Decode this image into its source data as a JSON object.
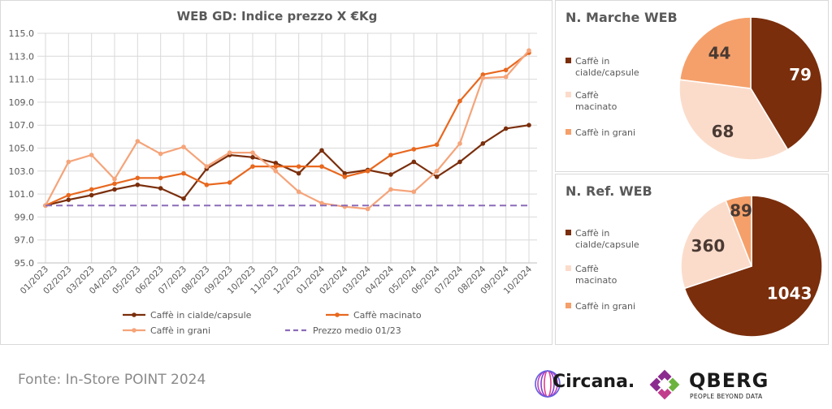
{
  "chart_data": [
    {
      "type": "line",
      "title": "WEB GD: Indice prezzo X €Kg",
      "x": [
        "01/2023",
        "02/2023",
        "03/2023",
        "04/2023",
        "05/2023",
        "06/2023",
        "07/2023",
        "08/2023",
        "09/2023",
        "10/2023",
        "11/2023",
        "12/2023",
        "01/2024",
        "02/2024",
        "03/2024",
        "04/2024",
        "05/2024",
        "06/2024",
        "07/2024",
        "08/2024",
        "09/2024",
        "10/2024"
      ],
      "ylim": [
        95.0,
        115.0
      ],
      "yticks": [
        "95.0",
        "97.0",
        "99.0",
        "101.0",
        "103.0",
        "105.0",
        "107.0",
        "109.0",
        "111.0",
        "113.0",
        "115.0"
      ],
      "grid": true,
      "legend_position": "bottom",
      "series": [
        {
          "name": "Caffè in cialde/capsule",
          "color": "#7a2e0c",
          "values": [
            100.0,
            100.5,
            100.9,
            101.4,
            101.8,
            101.5,
            100.6,
            103.2,
            104.4,
            104.2,
            103.7,
            102.8,
            104.8,
            102.8,
            103.1,
            102.7,
            103.8,
            102.5,
            103.8,
            105.4,
            106.7,
            107.0
          ]
        },
        {
          "name": "Caffè macinato",
          "color": "#e8681f",
          "values": [
            100.0,
            100.9,
            101.4,
            101.9,
            102.4,
            102.4,
            102.8,
            101.8,
            102.0,
            103.4,
            103.4,
            103.4,
            103.4,
            102.5,
            103.0,
            104.4,
            104.9,
            105.3,
            109.1,
            111.4,
            111.8,
            113.3
          ]
        },
        {
          "name": "Caffè in grani",
          "color": "#f5a47a",
          "values": [
            100.0,
            103.8,
            104.4,
            102.3,
            105.6,
            104.5,
            105.1,
            103.4,
            104.6,
            104.6,
            103.0,
            101.2,
            100.2,
            99.9,
            99.7,
            101.4,
            101.2,
            103.0,
            105.4,
            111.1,
            111.2,
            113.5
          ]
        },
        {
          "name": "Prezzo medio 01/23",
          "color": "#8b6bb8",
          "dashed": true,
          "values": [
            100.0,
            100.0,
            100.0,
            100.0,
            100.0,
            100.0,
            100.0,
            100.0,
            100.0,
            100.0,
            100.0,
            100.0,
            100.0,
            100.0,
            100.0,
            100.0,
            100.0,
            100.0,
            100.0,
            100.0,
            100.0,
            100.0
          ]
        }
      ]
    },
    {
      "type": "pie",
      "title": "N. Marche WEB",
      "legend_position": "left",
      "slices": [
        {
          "label": "Caffè in cialde/capsule",
          "value": 79,
          "value_label": "79",
          "color": "#7a2e0c",
          "text_color": "#ffffff"
        },
        {
          "label": "Caffè macinato",
          "value": 68,
          "value_label": "68",
          "color": "#fbdccb",
          "text_color": "#4a3a33"
        },
        {
          "label": "Caffè in grani",
          "value": 44,
          "value_label": "44",
          "color": "#f5a06a",
          "text_color": "#4a3a33"
        }
      ]
    },
    {
      "type": "pie",
      "title": "N. Ref. WEB",
      "legend_position": "left",
      "slices": [
        {
          "label": "Caffè in cialde/capsule",
          "value": 1043,
          "value_label": "1043",
          "color": "#7a2e0c",
          "text_color": "#ffffff"
        },
        {
          "label": "Caffè macinato",
          "value": 360,
          "value_label": "360",
          "color": "#fbdccb",
          "text_color": "#4a3a33"
        },
        {
          "label": "Caffè in grani",
          "value": 89,
          "value_label": "89",
          "color": "#f5a06a",
          "text_color": "#4a3a33"
        }
      ]
    }
  ],
  "footer": {
    "source": "Fonte: In-Store POINT 2024",
    "logo_circana": "Circana.",
    "logo_qberg": "QBERG",
    "logo_qberg_tagline": "PEOPLE BEYOND DATA"
  }
}
